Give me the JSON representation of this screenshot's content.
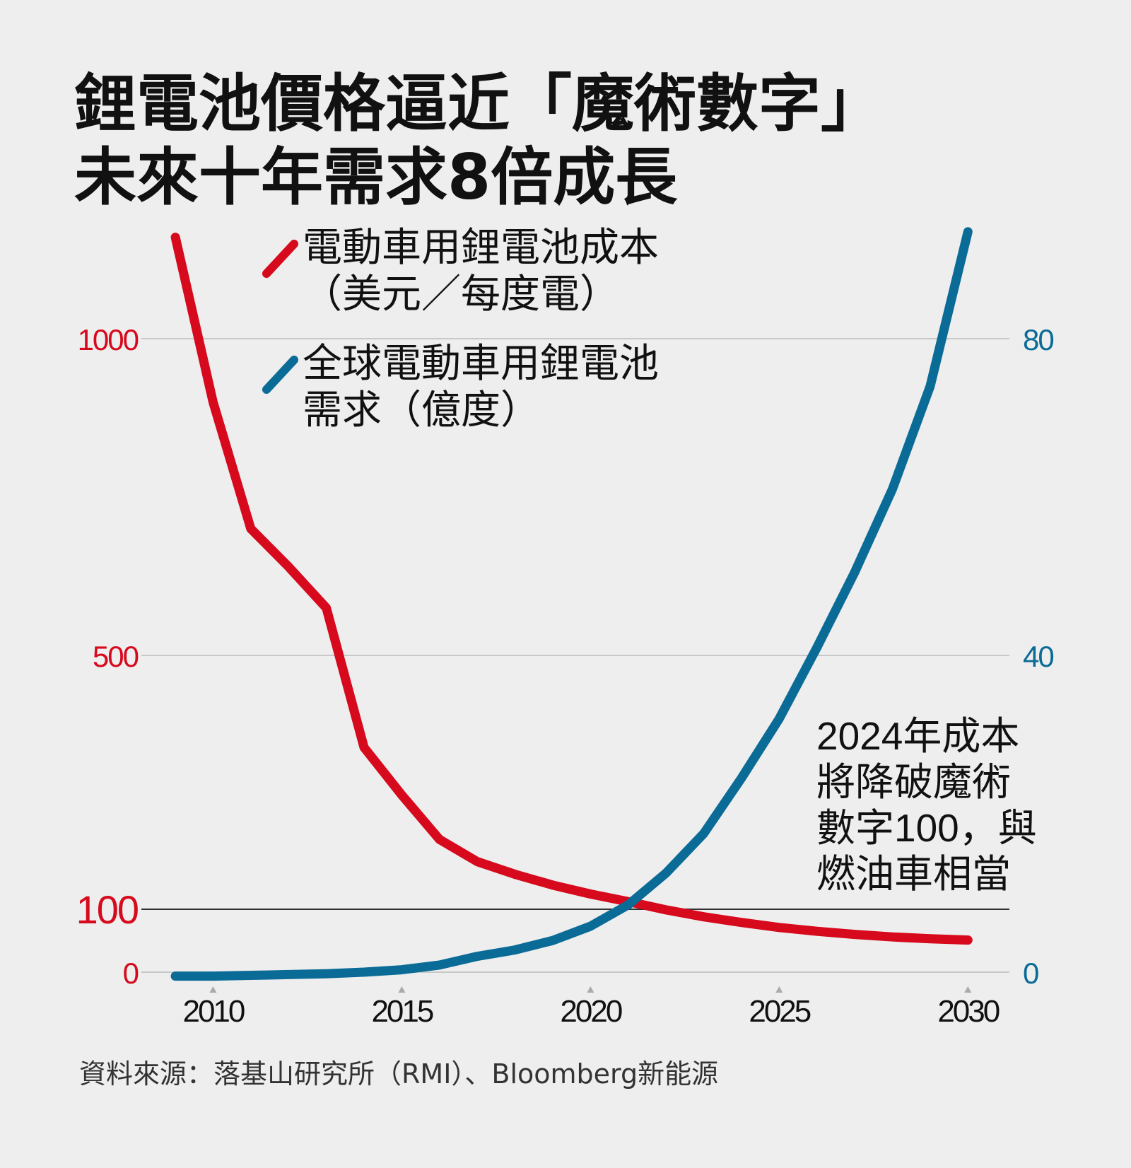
{
  "title": {
    "line1": "鋰電池價格逼近「魔術數字」",
    "line2": "未來十年需求8倍成長"
  },
  "source": "資料來源：落基山研究所（RMI）、Bloomberg新能源",
  "annotation": [
    "2024年成本",
    "將降破魔術",
    "數字100，與",
    "燃油車相當"
  ],
  "colors": {
    "red": "#d7091c",
    "blue": "#0b6b97",
    "grid": "#bbbbbb",
    "baseline": "#333333",
    "text": "#111111"
  },
  "chart_data": {
    "type": "line",
    "x_ticks": [
      2010,
      2015,
      2020,
      2025,
      2030
    ],
    "xlim": [
      2008.1,
      2031.1
    ],
    "left_axis": {
      "ticks": [
        "0",
        "100",
        "500",
        "1000"
      ],
      "scale": "piecewise"
    },
    "right_axis": {
      "ticks": [
        "0",
        "40",
        "80"
      ],
      "ylim": [
        0,
        80
      ]
    },
    "series": [
      {
        "name": "電動車用鋰電池成本\n（美元／每度電）",
        "legend_lines": [
          "電動車用鋰電池成本",
          "（美元／每度電）"
        ],
        "axis": "left",
        "color": "#d7091c",
        "x": [
          2009,
          2010,
          2011,
          2012,
          2013,
          2014,
          2015,
          2016,
          2017,
          2018,
          2019,
          2020,
          2021,
          2022,
          2023,
          2024,
          2025,
          2026,
          2027,
          2028,
          2029,
          2030
        ],
        "y": [
          1160,
          900,
          700,
          640,
          575,
          355,
          280,
          210,
          175,
          155,
          138,
          124,
          112,
          99,
          88,
          79,
          71,
          65,
          60,
          56,
          53,
          51
        ]
      },
      {
        "name": "全球電動車用鋰電池\n需求（億度）",
        "legend_lines": [
          "全球電動車用鋰電池",
          "需求（億度）"
        ],
        "axis": "right",
        "color": "#0b6b97",
        "x": [
          2009,
          2010,
          2011,
          2012,
          2013,
          2014,
          2015,
          2016,
          2017,
          2018,
          2019,
          2020,
          2021,
          2022,
          2023,
          2024,
          2025,
          2026,
          2027,
          2028,
          2029,
          2030
        ],
        "y": [
          -0.5,
          -0.5,
          -0.4,
          -0.3,
          -0.2,
          0.0,
          0.3,
          0.9,
          2.0,
          2.8,
          4.0,
          5.8,
          8.5,
          12.5,
          17.5,
          24.5,
          32.0,
          41.0,
          50.5,
          61.0,
          74.0,
          93.5
        ]
      }
    ]
  }
}
